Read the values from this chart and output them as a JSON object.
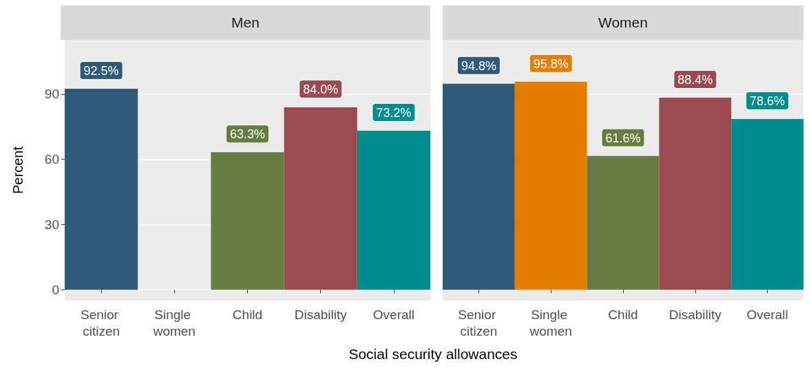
{
  "chart_data": [
    {
      "type": "bar",
      "title": "Men",
      "ylabel": "Percent",
      "xlabel": "Social security allowances",
      "categories": [
        "Senior citizen",
        "Single women",
        "Child",
        "Disability",
        "Overall"
      ],
      "values": [
        92.5,
        null,
        63.3,
        84.0,
        73.2
      ],
      "colors": [
        "#31597a",
        "#e37e00",
        "#667c40",
        "#9b4a51",
        "#008b8f"
      ],
      "value_labels": [
        "92.5%",
        null,
        "63.3%",
        "84.0%",
        "73.2%"
      ],
      "ylim": [
        -5,
        115
      ],
      "yticks": [
        0,
        30,
        60,
        90
      ],
      "grid": true
    },
    {
      "type": "bar",
      "title": "Women",
      "categories": [
        "Senior citizen",
        "Single women",
        "Child",
        "Disability",
        "Overall"
      ],
      "values": [
        94.8,
        95.8,
        61.6,
        88.4,
        78.6
      ],
      "colors": [
        "#31597a",
        "#e37e00",
        "#667c40",
        "#9b4a51",
        "#008b8f"
      ],
      "value_labels": [
        "94.8%",
        "95.8%",
        "61.6%",
        "88.4%",
        "78.6%"
      ],
      "ylim": [
        -5,
        115
      ],
      "yticks": [
        0,
        30,
        60,
        90
      ],
      "grid": true,
      "tick_labels": "x"
    }
  ]
}
